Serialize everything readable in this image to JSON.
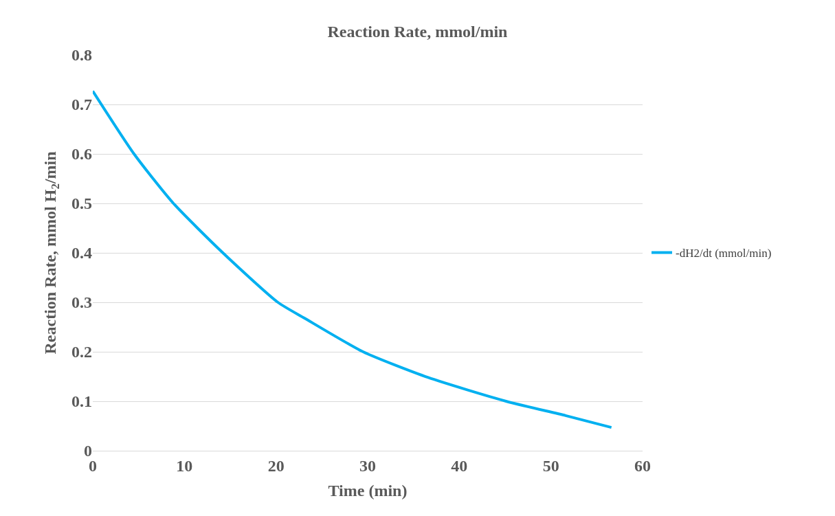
{
  "chart_data": {
    "type": "line",
    "title": "Reaction Rate, mmol/min",
    "xlabel": "Time (min)",
    "ylabel": "Reaction Rate, mmol H$_{2}$/min",
    "x": [
      0,
      4.5,
      8.8,
      14.2,
      20.2,
      23.1,
      29.5,
      36.6,
      45.1,
      51.6,
      56.6
    ],
    "series": [
      {
        "name": "-dH2/dt (mmol/min)",
        "color": "#00b0f0",
        "values": [
          0.727,
          0.6,
          0.5,
          0.4,
          0.3,
          0.268,
          0.2,
          0.148,
          0.1,
          0.071,
          0.047
        ]
      }
    ],
    "xlim": [
      0,
      60
    ],
    "xticks": [
      0,
      10,
      20,
      30,
      40,
      50,
      60
    ],
    "ylim": [
      0,
      0.8
    ],
    "yticks": [
      0,
      0.1,
      0.2,
      0.3,
      0.4,
      0.5,
      0.6,
      0.7,
      0.8
    ],
    "grid": "y",
    "legend": "right",
    "marker": "none",
    "line_style": "solid"
  }
}
